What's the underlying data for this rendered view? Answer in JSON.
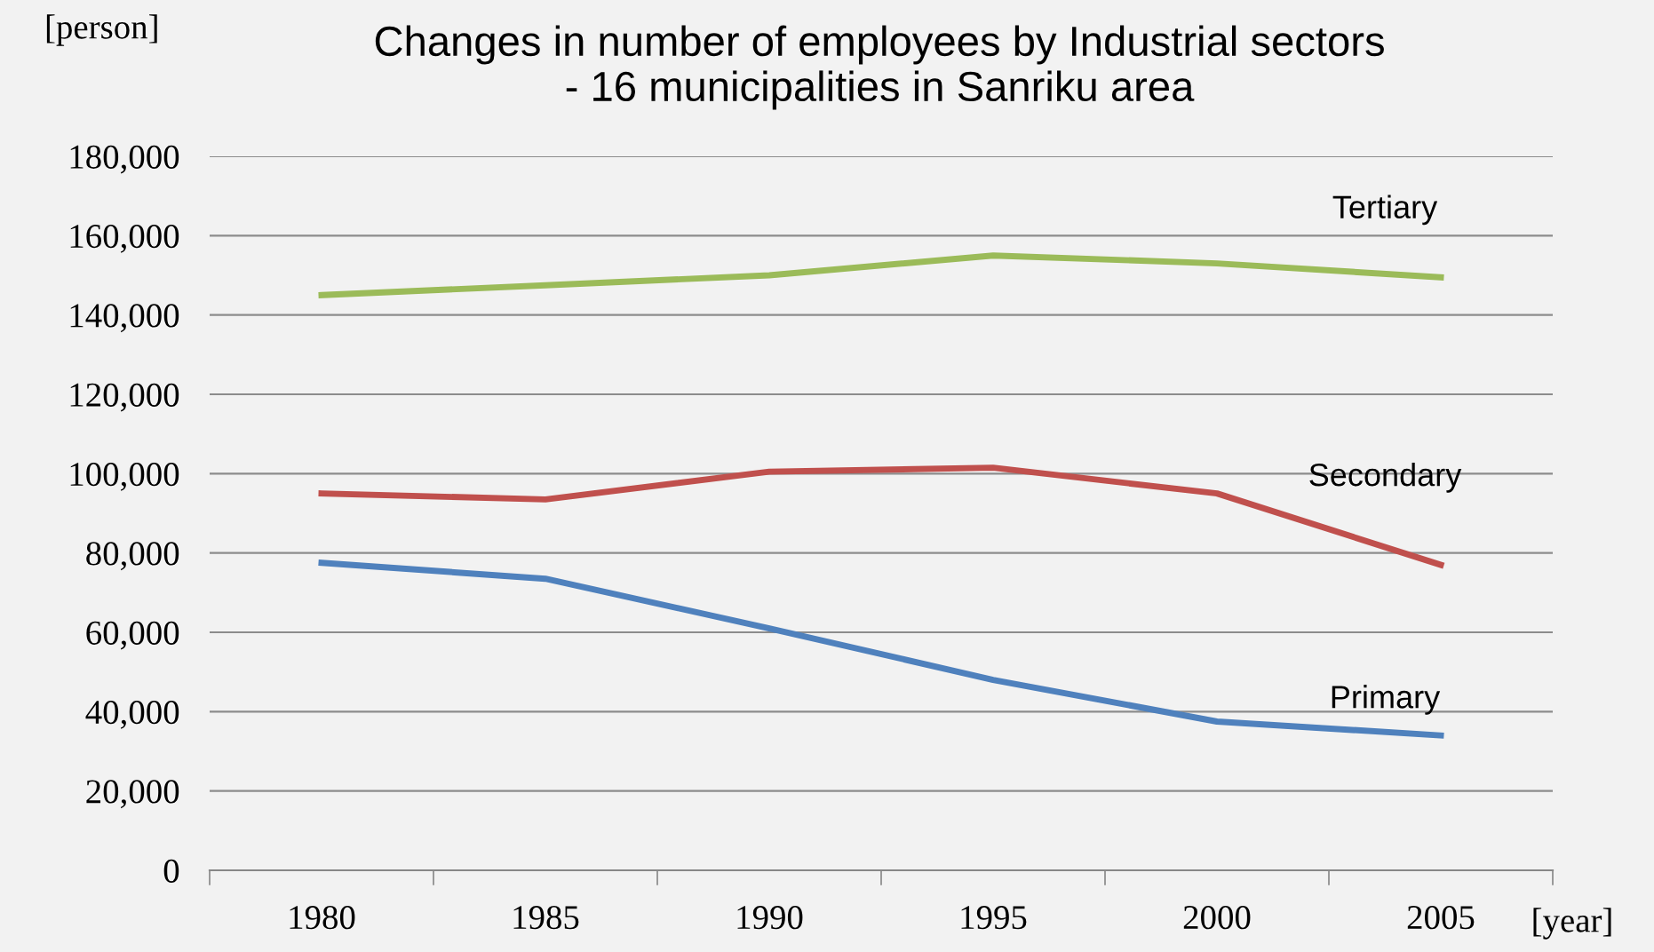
{
  "chart_data": {
    "type": "line",
    "title": "Changes in number of employees by Industrial sectors\n- 16 municipalities in Sanriku area",
    "ylabel": "[person]",
    "xlabel": "[year]",
    "categories": [
      "1980",
      "1985",
      "1990",
      "1995",
      "2000",
      "2005"
    ],
    "series": [
      {
        "name": "Tertiary",
        "color": "#9bbb59",
        "values": [
          145000,
          147500,
          150000,
          155000,
          153000,
          149500
        ]
      },
      {
        "name": "Secondary",
        "color": "#c0504d",
        "values": [
          95000,
          93500,
          100500,
          101500,
          95000,
          77000
        ]
      },
      {
        "name": "Primary",
        "color": "#4f81bd",
        "values": [
          77500,
          73500,
          61000,
          48000,
          37500,
          34000
        ]
      }
    ],
    "ylim": [
      0,
      180000
    ],
    "yticks": [
      {
        "value": 0,
        "label": "0"
      },
      {
        "value": 20000,
        "label": "20,000"
      },
      {
        "value": 40000,
        "label": "40,000"
      },
      {
        "value": 60000,
        "label": "60,000"
      },
      {
        "value": 80000,
        "label": "80,000"
      },
      {
        "value": 100000,
        "label": "100,000"
      },
      {
        "value": 120000,
        "label": "120,000"
      },
      {
        "value": 140000,
        "label": "140,000"
      },
      {
        "value": 160000,
        "label": "160,000"
      },
      {
        "value": 180000,
        "label": "180,000"
      }
    ],
    "grid": "y",
    "legend": false,
    "marker": "none",
    "line_style": "solid"
  }
}
